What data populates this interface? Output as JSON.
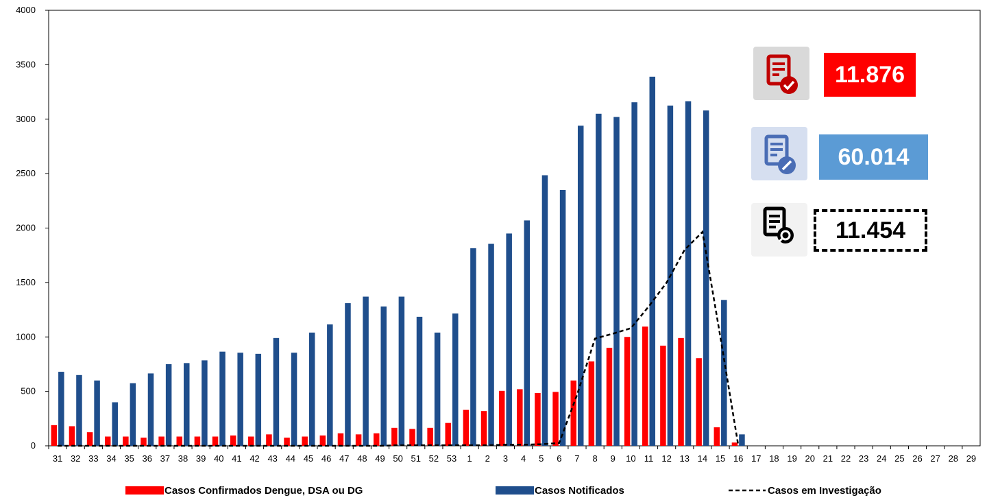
{
  "chart_data": {
    "type": "bar",
    "categories": [
      "31",
      "32",
      "33",
      "34",
      "35",
      "36",
      "37",
      "38",
      "39",
      "40",
      "41",
      "42",
      "43",
      "44",
      "45",
      "46",
      "47",
      "48",
      "49",
      "50",
      "51",
      "52",
      "53",
      "1",
      "2",
      "3",
      "4",
      "5",
      "6",
      "7",
      "8",
      "9",
      "10",
      "11",
      "12",
      "13",
      "14",
      "15",
      "16",
      "17",
      "18",
      "19",
      "20",
      "21",
      "22",
      "23",
      "24",
      "25",
      "26",
      "27",
      "28",
      "29"
    ],
    "ylim": [
      0,
      4000
    ],
    "yticks": [
      0,
      500,
      1000,
      1500,
      2000,
      2500,
      3000,
      3500,
      4000
    ],
    "grid": false,
    "legend_placement": "bottom",
    "series": [
      {
        "name": "Casos Confirmados Dengue, DSA ou DG",
        "kind": "bar",
        "color": "#ff0000",
        "values": [
          190,
          180,
          125,
          85,
          85,
          75,
          85,
          85,
          85,
          85,
          95,
          85,
          105,
          75,
          85,
          95,
          115,
          105,
          115,
          165,
          155,
          165,
          210,
          330,
          320,
          505,
          520,
          485,
          495,
          600,
          775,
          900,
          1000,
          1095,
          920,
          990,
          805,
          170,
          30,
          null,
          null,
          null,
          null,
          null,
          null,
          null,
          null,
          null,
          null,
          null,
          null,
          null
        ]
      },
      {
        "name": "Casos Notificados",
        "kind": "bar",
        "color": "#1f4e8c",
        "values": [
          680,
          650,
          600,
          400,
          575,
          665,
          750,
          760,
          785,
          865,
          855,
          845,
          990,
          855,
          1040,
          1115,
          1310,
          1370,
          1280,
          1370,
          1185,
          1040,
          1215,
          1815,
          1855,
          1950,
          2070,
          2485,
          2350,
          2940,
          3050,
          3020,
          3155,
          3390,
          3125,
          3165,
          3080,
          1340,
          105,
          null,
          null,
          null,
          null,
          null,
          null,
          null,
          null,
          null,
          null,
          null,
          null,
          null
        ]
      },
      {
        "name": "Casos em Investigação",
        "kind": "line",
        "style": "dashed",
        "color": "#000000",
        "values": [
          0,
          0,
          0,
          0,
          0,
          0,
          0,
          0,
          0,
          0,
          0,
          0,
          0,
          0,
          0,
          0,
          0,
          0,
          0,
          5,
          5,
          5,
          5,
          5,
          5,
          10,
          10,
          15,
          25,
          470,
          985,
          1030,
          1080,
          1280,
          1500,
          1800,
          1965,
          1000,
          0,
          null,
          null,
          null,
          null,
          null,
          null,
          null,
          null,
          null,
          null,
          null,
          null,
          null
        ]
      }
    ]
  },
  "kpis": {
    "confirmed": {
      "value": "11.876",
      "color": "#ff0000",
      "icon": "document-check-icon"
    },
    "notified": {
      "value": "60.014",
      "color": "#5b9bd5",
      "icon": "document-edit-icon"
    },
    "investigation": {
      "value": "11.454",
      "icon": "document-search-icon"
    }
  }
}
